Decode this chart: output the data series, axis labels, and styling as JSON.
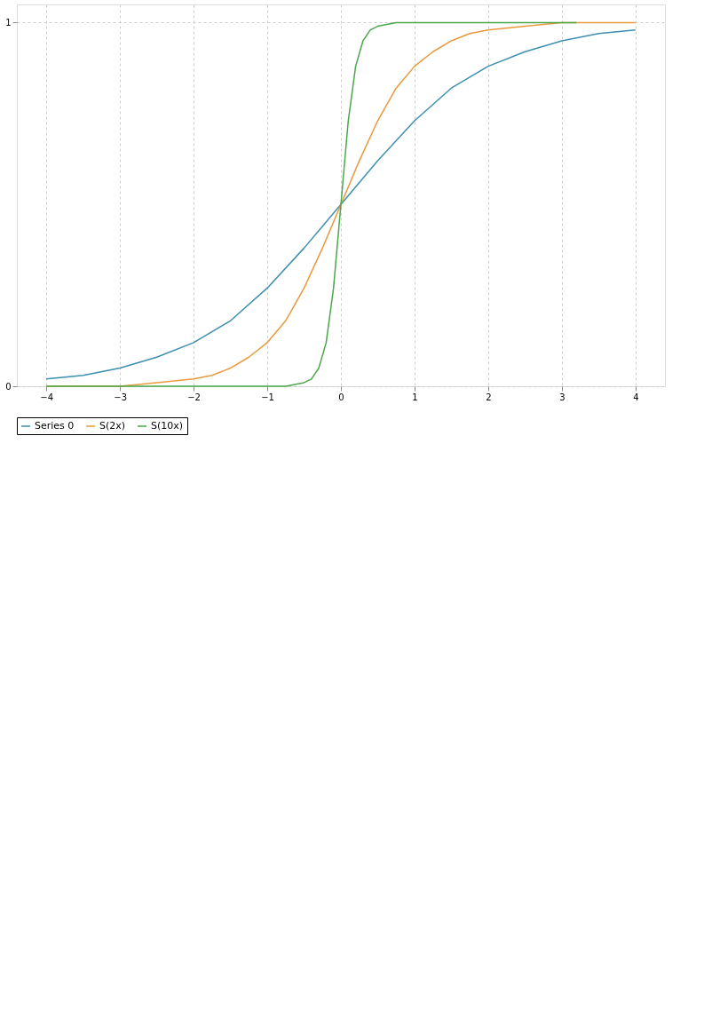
{
  "chart_data": {
    "type": "line",
    "series": [
      {
        "name": "Series 0",
        "color": "#3d8fb0",
        "x": [
          -4,
          -3.5,
          -3,
          -2.5,
          -2,
          -1.5,
          -1,
          -0.5,
          0,
          0.5,
          1,
          1.5,
          2,
          2.5,
          3,
          3.5,
          4
        ],
        "values": [
          0.02,
          0.03,
          0.05,
          0.08,
          0.12,
          0.18,
          0.27,
          0.38,
          0.5,
          0.62,
          0.73,
          0.82,
          0.88,
          0.92,
          0.95,
          0.97,
          0.98
        ]
      },
      {
        "name": "S(2x)",
        "color": "#e89a3c",
        "x": [
          -4,
          -3.5,
          -3,
          -2.5,
          -2,
          -1.75,
          -1.5,
          -1.25,
          -1,
          -0.75,
          -0.5,
          -0.25,
          0,
          0.25,
          0.5,
          0.75,
          1,
          1.25,
          1.5,
          1.75,
          2,
          2.5,
          3,
          3.5,
          4
        ],
        "values": [
          0,
          0,
          0,
          0.01,
          0.02,
          0.03,
          0.05,
          0.08,
          0.12,
          0.18,
          0.27,
          0.38,
          0.5,
          0.62,
          0.73,
          0.82,
          0.88,
          0.92,
          0.95,
          0.97,
          0.98,
          0.99,
          1,
          1,
          1
        ]
      },
      {
        "name": "S(10x)",
        "color": "#4aa84a",
        "x": [
          -4,
          -1,
          -0.75,
          -0.5,
          -0.4,
          -0.3,
          -0.2,
          -0.1,
          0,
          0.1,
          0.2,
          0.3,
          0.4,
          0.5,
          0.75,
          3.2
        ],
        "values": [
          0,
          0,
          0,
          0.01,
          0.02,
          0.05,
          0.12,
          0.27,
          0.5,
          0.73,
          0.88,
          0.95,
          0.98,
          0.99,
          1,
          1
        ]
      }
    ],
    "xlim": [
      -4.4,
      4.4
    ],
    "xticks": [
      -4,
      -3,
      -2,
      -1,
      0,
      1,
      2,
      3,
      4
    ],
    "ylim": [
      0,
      1.05
    ],
    "yticks": [
      0,
      1
    ],
    "grid": true,
    "legend": "bottom"
  }
}
